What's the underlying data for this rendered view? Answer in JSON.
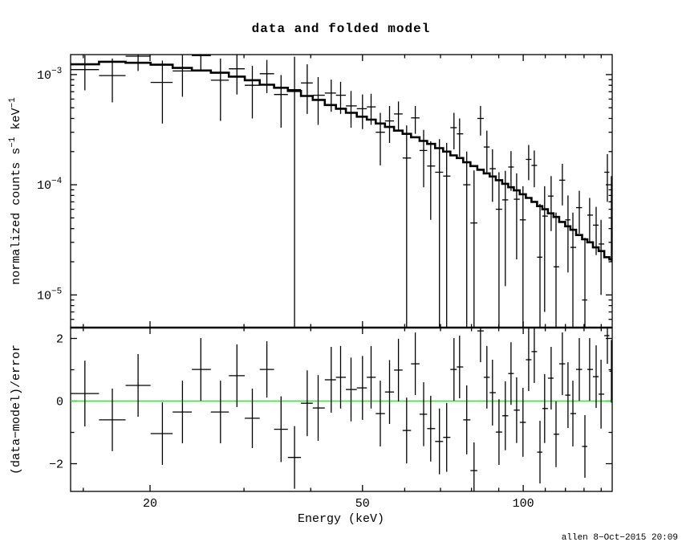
{
  "title": "data and folded model",
  "signature": "allen  8−Oct−2015 20:09",
  "background_color": "#ffffff",
  "frame_color": "#000000",
  "chart_data": {
    "type": "scatter",
    "description": "X-ray spectrum: binned data with 1-sigma error crosses and folded model histogram (top panel, log-log); (data-model)/error residuals (bottom panel) with green zero line",
    "x_axis": {
      "label": "Energy (keV)",
      "scale": "log",
      "range_kev": [
        14.2,
        146.8
      ],
      "major_ticks": [
        {
          "v": 20,
          "label": "20"
        },
        {
          "v": 50,
          "label": "50"
        },
        {
          "v": 100,
          "label": "100"
        }
      ],
      "minor_ticks": [
        15,
        30,
        40,
        60,
        70,
        80,
        90,
        110,
        120,
        130,
        140
      ]
    },
    "top_panel": {
      "y_label_parts": [
        {
          "text": "normalized counts s"
        },
        {
          "text": "−1",
          "sup": true
        },
        {
          "text": " keV"
        },
        {
          "text": "−1",
          "sup": true
        }
      ],
      "y_scale": "log",
      "y_range": [
        5.05e-06,
        0.00152
      ],
      "y_major_ticks": [
        {
          "v": 0.001,
          "base": "10",
          "exp": "−3"
        },
        {
          "v": 0.0001,
          "base": "10",
          "exp": "−4"
        },
        {
          "v": 1e-05,
          "base": "10",
          "exp": "−5"
        }
      ]
    },
    "bottom_panel": {
      "y_label_parts": [
        {
          "text": "(data−model)/error"
        }
      ],
      "y_scale": "linear",
      "y_range": [
        -2.885,
        2.346
      ],
      "y_major_ticks": [
        {
          "v": 2,
          "label": "2"
        },
        {
          "v": 0,
          "label": "0"
        },
        {
          "v": -2,
          "label": "−2"
        }
      ],
      "y_minor_ticks": [
        1,
        -1
      ],
      "zero_line_color": "#00ff00"
    },
    "model": {
      "name": "folded model",
      "color": "#000000",
      "bin_edges_kev": [
        14.2,
        16.05,
        18.0,
        20.05,
        22.05,
        23.95,
        26.0,
        28.1,
        30.1,
        32.1,
        34.15,
        36.25,
        38.35,
        40.35,
        42.5,
        44.6,
        46.55,
        48.8,
        50.95,
        52.95,
        55.1,
        57.3,
        59.45,
        61.65,
        63.95,
        66.1,
        68.4,
        70.8,
        73.05,
        75.1,
        77.2,
        79.65,
        82.05,
        84.35,
        86.55,
        88.85,
        91.35,
        93.75,
        96.05,
        98.55,
        101.15,
        103.65,
        106.2,
        108.6,
        111.25,
        114.0,
        116.8,
        119.85,
        122.6,
        125.65,
        128.95,
        131.85,
        135.1,
        138.45,
        141.85,
        145.05,
        146.8
      ],
      "values": [
        0.00124,
        0.00131,
        0.00128,
        0.00123,
        0.00115,
        0.00109,
        0.00104,
        0.00096,
        0.00089,
        0.00081,
        0.00076,
        0.00071,
        0.00064,
        0.00059,
        0.00053,
        0.00049,
        0.00045,
        0.000415,
        0.00039,
        0.00036,
        0.000335,
        0.00031,
        0.00029,
        0.00027,
        0.00025,
        0.000235,
        0.000215,
        0.0002,
        0.000185,
        0.000175,
        0.00016,
        0.000148,
        0.000137,
        0.000127,
        0.000119,
        0.00011,
        0.000102,
        9.5e-05,
        8.9e-05,
        8.2e-05,
        7.6e-05,
        7e-05,
        6.4e-05,
        6e-05,
        5.5e-05,
        5.1e-05,
        4.6e-05,
        4.2e-05,
        3.9e-05,
        3.5e-05,
        3.2e-05,
        3e-05,
        2.7e-05,
        2.5e-05,
        2.2e-05,
        2.1e-05
      ]
    },
    "data_points": {
      "color": "#000000",
      "columns": [
        "e_lo_kev",
        "e_hi_kev",
        "e_kev",
        "flux",
        "flux_sigma",
        "resid",
        "resid_sigma"
      ],
      "rows": [
        [
          14.2,
          16.05,
          15.1,
          0.00111,
          0.00039,
          0.24,
          1.05
        ],
        [
          16.05,
          18.0,
          17.0,
          0.00098,
          0.00042,
          -0.6,
          1.0
        ],
        [
          18.0,
          20.05,
          19.0,
          0.00147,
          0.00039,
          0.5,
          1.0
        ],
        [
          20.05,
          22.05,
          21.1,
          0.00085,
          0.00049,
          -1.04,
          1.0
        ],
        [
          22.05,
          23.95,
          23.0,
          0.00108,
          0.00045,
          -0.35,
          1.0
        ],
        [
          23.95,
          26.0,
          24.9,
          0.00149,
          0.0004,
          1.01,
          1.0
        ],
        [
          26.0,
          28.1,
          27.1,
          0.00089,
          0.00051,
          -0.35,
          1.0
        ],
        [
          28.1,
          30.1,
          29.1,
          0.00113,
          0.00047,
          0.81,
          1.0
        ],
        [
          30.1,
          32.1,
          31.1,
          0.0008,
          0.0004,
          -0.55,
          0.95
        ],
        [
          32.1,
          34.15,
          33.1,
          0.00102,
          0.00034,
          1.01,
          0.9
        ],
        [
          34.15,
          36.25,
          35.2,
          0.00066,
          0.00033,
          -0.9,
          1.05
        ],
        [
          36.25,
          38.35,
          37.3,
          0.00073,
          0.000725,
          -1.8,
          1.0
        ],
        [
          38.35,
          40.35,
          39.4,
          0.00084,
          0.0004,
          -0.07,
          1.05
        ],
        [
          40.35,
          42.5,
          41.3,
          0.00065,
          0.0003,
          -0.22,
          1.05
        ],
        [
          42.5,
          44.6,
          43.7,
          0.00068,
          0.00022,
          0.68,
          1.05
        ],
        [
          44.6,
          46.55,
          45.5,
          0.00065,
          0.00021,
          0.76,
          1.0
        ],
        [
          46.55,
          48.8,
          47.6,
          0.00052,
          0.00019,
          0.37,
          1.02
        ],
        [
          48.8,
          50.95,
          50.0,
          0.00049,
          0.00017,
          0.42,
          1.02
        ],
        [
          50.95,
          52.95,
          51.9,
          0.00051,
          0.00016,
          0.76,
          1.0
        ],
        [
          52.95,
          55.1,
          54.0,
          0.0003,
          0.00015,
          -0.4,
          1.05
        ],
        [
          55.1,
          57.3,
          56.2,
          0.00038,
          0.00014,
          0.29,
          1.02
        ],
        [
          57.3,
          59.45,
          58.4,
          0.00044,
          0.00013,
          0.99,
          1.0
        ],
        [
          59.45,
          61.65,
          60.5,
          0.000175,
          0.00017,
          -0.94,
          1.05
        ],
        [
          61.65,
          63.95,
          62.8,
          0.000405,
          0.000115,
          1.19,
          1.0
        ],
        [
          63.95,
          66.1,
          65.1,
          0.000205,
          0.00011,
          -0.42,
          1.02
        ],
        [
          66.1,
          68.4,
          67.1,
          0.000148,
          0.0001,
          -0.88,
          1.05
        ],
        [
          68.4,
          70.8,
          69.7,
          0.00013,
          0.00013,
          -1.29,
          1.05
        ],
        [
          70.8,
          73.05,
          71.9,
          0.00012,
          0.00012,
          -1.16,
          1.1
        ],
        [
          73.05,
          75.1,
          74.2,
          0.00033,
          0.00012,
          1.01,
          1.0
        ],
        [
          75.1,
          77.2,
          76.0,
          0.00029,
          0.00011,
          1.09,
          1.0
        ],
        [
          77.2,
          79.65,
          78.4,
          0.0001,
          0.0001,
          -0.6,
          1.1
        ],
        [
          79.65,
          82.05,
          80.9,
          4.5e-05,
          9e-05,
          -2.22,
          0.9
        ],
        [
          82.05,
          84.35,
          83.2,
          0.0004,
          0.00012,
          2.24,
          1.0
        ],
        [
          84.35,
          86.55,
          85.5,
          0.00022,
          9e-05,
          0.76,
          1.0
        ],
        [
          86.55,
          88.85,
          87.6,
          0.00014,
          7e-05,
          0.27,
          1.05
        ],
        [
          88.85,
          91.35,
          90.1,
          6e-05,
          7e-05,
          -0.99,
          1.05
        ],
        [
          91.35,
          93.75,
          92.6,
          7.3e-05,
          6.1e-05,
          -0.47,
          1.1
        ],
        [
          93.75,
          96.05,
          94.9,
          0.000145,
          5.7e-05,
          0.88,
          1.0
        ],
        [
          96.05,
          98.55,
          97.2,
          7.4e-05,
          5.3e-05,
          -0.29,
          1.05
        ],
        [
          98.55,
          101.15,
          99.9,
          4.8e-05,
          4.9e-05,
          -0.68,
          1.1
        ],
        [
          101.15,
          103.65,
          102.4,
          0.00017,
          6e-05,
          1.32,
          1.0
        ],
        [
          103.65,
          106.2,
          104.9,
          0.00015,
          5.5e-05,
          1.58,
          1.0
        ],
        [
          106.2,
          108.6,
          107.5,
          2.2e-05,
          4.5e-05,
          -1.63,
          1.0
        ],
        [
          108.6,
          111.25,
          109.7,
          5.2e-05,
          4.5e-05,
          -0.24,
          1.1
        ],
        [
          111.25,
          114.0,
          112.8,
          7.9e-05,
          4.1e-05,
          0.73,
          1.0
        ],
        [
          114.0,
          116.8,
          115.2,
          1.8e-05,
          3.8e-05,
          -1.06,
          1.05
        ],
        [
          116.8,
          119.85,
          118.4,
          0.00011,
          4.5e-05,
          1.19,
          1.0
        ],
        [
          119.85,
          122.6,
          121.3,
          4.8e-05,
          3.2e-05,
          0.19,
          1.05
        ],
        [
          122.6,
          125.65,
          123.9,
          2.7e-05,
          2.9e-05,
          -0.4,
          1.05
        ],
        [
          125.65,
          128.95,
          127.4,
          6.2e-05,
          2.6e-05,
          1.01,
          1.0
        ],
        [
          128.95,
          131.85,
          130.5,
          9e-06,
          2.4e-05,
          -1.45,
          1.0
        ],
        [
          131.85,
          135.1,
          133.2,
          5.3e-05,
          2.3e-05,
          1.01,
          1.0
        ],
        [
          135.1,
          138.45,
          137.0,
          4.3e-05,
          2e-05,
          0.78,
          1.0
        ],
        [
          138.45,
          141.85,
          139.9,
          2.9e-05,
          1.9e-05,
          0.22,
          1.1
        ],
        [
          141.85,
          145.05,
          143.8,
          0.00013,
          6e-05,
          2.09,
          0.9
        ],
        [
          145.05,
          146.8,
          146.3,
          7e-05,
          5e-05,
          0.95,
          1.0
        ]
      ]
    }
  }
}
